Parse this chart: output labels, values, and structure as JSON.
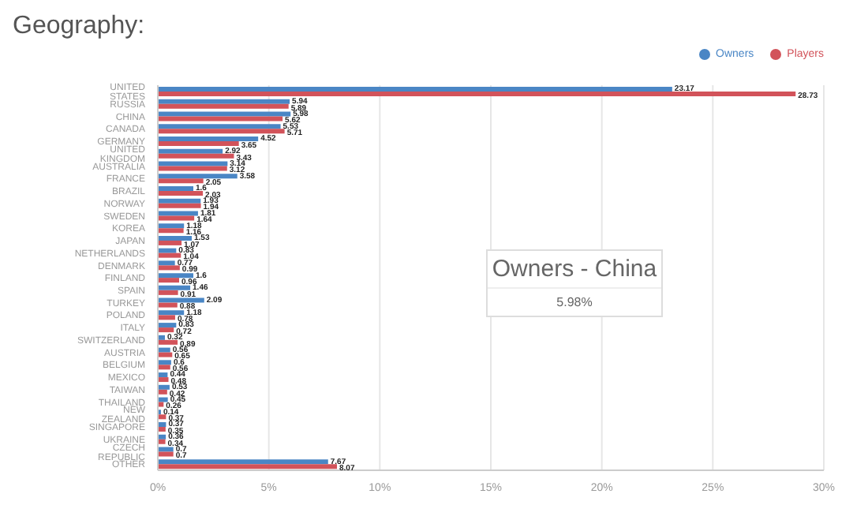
{
  "chart_data": {
    "type": "bar",
    "orientation": "horizontal",
    "title": "Geography:",
    "categories": [
      "UNITED STATES",
      "RUSSIA",
      "CHINA",
      "CANADA",
      "GERMANY",
      "UNITED KINGDOM",
      "AUSTRALIA",
      "FRANCE",
      "BRAZIL",
      "NORWAY",
      "SWEDEN",
      "KOREA",
      "JAPAN",
      "NETHERLANDS",
      "DENMARK",
      "FINLAND",
      "SPAIN",
      "TURKEY",
      "POLAND",
      "ITALY",
      "SWITZERLAND",
      "AUSTRIA",
      "BELGIUM",
      "MEXICO",
      "TAIWAN",
      "THAILAND",
      "NEW ZEALAND",
      "SINGAPORE",
      "UKRAINE",
      "CZECH REPUBLIC",
      "OTHER"
    ],
    "series": [
      {
        "name": "Owners",
        "color": "#4a86c5",
        "values": [
          23.17,
          5.94,
          5.98,
          5.53,
          4.52,
          2.92,
          3.14,
          3.58,
          1.6,
          1.93,
          1.81,
          1.18,
          1.53,
          0.83,
          0.77,
          1.6,
          1.46,
          2.09,
          1.18,
          0.83,
          0.32,
          0.56,
          0.6,
          0.44,
          0.53,
          0.45,
          0.14,
          0.37,
          0.36,
          0.7,
          7.67
        ]
      },
      {
        "name": "Players",
        "color": "#d2535a",
        "values": [
          28.73,
          5.89,
          5.62,
          5.71,
          3.65,
          3.43,
          3.12,
          2.05,
          2.03,
          1.94,
          1.64,
          1.16,
          1.07,
          1.04,
          0.99,
          0.96,
          0.91,
          0.88,
          0.78,
          0.72,
          0.89,
          0.65,
          0.56,
          0.48,
          0.42,
          0.26,
          0.37,
          0.35,
          0.34,
          0.7,
          8.07
        ]
      }
    ],
    "xlim": [
      0,
      30
    ],
    "xticks": [
      {
        "value": 0,
        "label": "0%"
      },
      {
        "value": 5,
        "label": "5%"
      },
      {
        "value": 10,
        "label": "10%"
      },
      {
        "value": 15,
        "label": "15%"
      },
      {
        "value": 20,
        "label": "20%"
      },
      {
        "value": 25,
        "label": "25%"
      },
      {
        "value": 30,
        "label": "30%"
      }
    ],
    "grid": "x",
    "legend": "top right",
    "data_labels": true,
    "annotations": [
      "Owners - China",
      "5.98%"
    ]
  }
}
